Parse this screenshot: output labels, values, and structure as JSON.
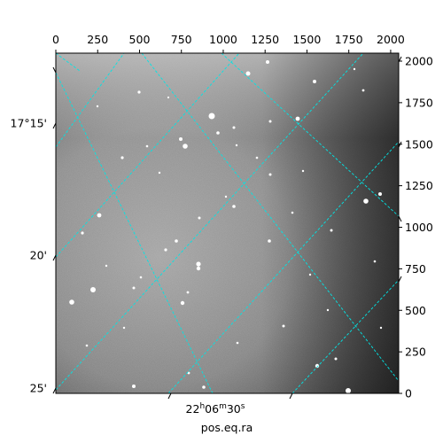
{
  "figure": {
    "image": "astronomical grayscale star field with cyan celestial coordinate grid",
    "colors": {
      "grid": "#00e5e5",
      "frame": "#000000",
      "background": "#ffffff"
    }
  },
  "axes": {
    "pixel_x": {
      "ticks": [
        "0",
        "250",
        "500",
        "750",
        "1000",
        "1250",
        "1500",
        "1750",
        "2000"
      ],
      "range": [
        0,
        2048
      ]
    },
    "pixel_y": {
      "ticks": [
        "0",
        "250",
        "500",
        "750",
        "1000",
        "1250",
        "1500",
        "1750",
        "2000"
      ],
      "range": [
        0,
        2048
      ]
    },
    "dec_ticks": [
      "17°15'",
      "20'",
      "25'"
    ],
    "ra_tick": {
      "prefix": "22",
      "h": "h",
      "mid": "06",
      "m": "m",
      "sec": "30",
      "s": "s"
    },
    "xlabel": "pos.eq.ra"
  }
}
